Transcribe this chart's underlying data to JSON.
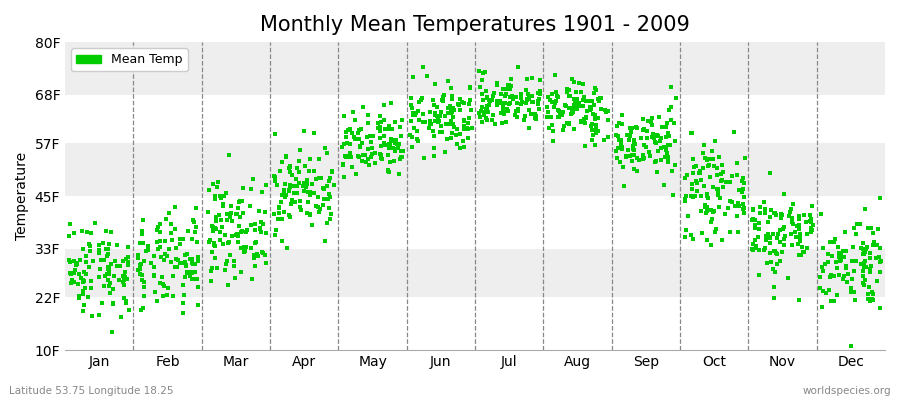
{
  "title": "Monthly Mean Temperatures 1901 - 2009",
  "ylabel": "Temperature",
  "yticks": [
    10,
    22,
    33,
    45,
    57,
    68,
    80
  ],
  "ytick_labels": [
    "10F",
    "22F",
    "33F",
    "45F",
    "57F",
    "68F",
    "80F"
  ],
  "ylim": [
    10,
    80
  ],
  "months": [
    "Jan",
    "Feb",
    "Mar",
    "Apr",
    "May",
    "Jun",
    "Jul",
    "Aug",
    "Sep",
    "Oct",
    "Nov",
    "Dec"
  ],
  "dot_color": "#00cc00",
  "background_color": "#ffffff",
  "band_colors": [
    "#ffffff",
    "#eeeeee",
    "#ffffff",
    "#eeeeee",
    "#ffffff",
    "#eeeeee"
  ],
  "title_fontsize": 15,
  "axis_fontsize": 10,
  "legend_label": "Mean Temp",
  "bottom_left": "Latitude 53.75 Longitude 18.25",
  "bottom_right": "worldspecies.org",
  "n_years": 109,
  "monthly_means": [
    28.5,
    29.5,
    37.5,
    46.5,
    56.0,
    62.5,
    66.5,
    64.5,
    57.0,
    46.0,
    36.5,
    30.0
  ],
  "monthly_stds": [
    5.5,
    5.5,
    5.5,
    5.0,
    4.0,
    4.0,
    3.0,
    3.5,
    4.0,
    5.0,
    5.0,
    5.5
  ],
  "seed": 42
}
